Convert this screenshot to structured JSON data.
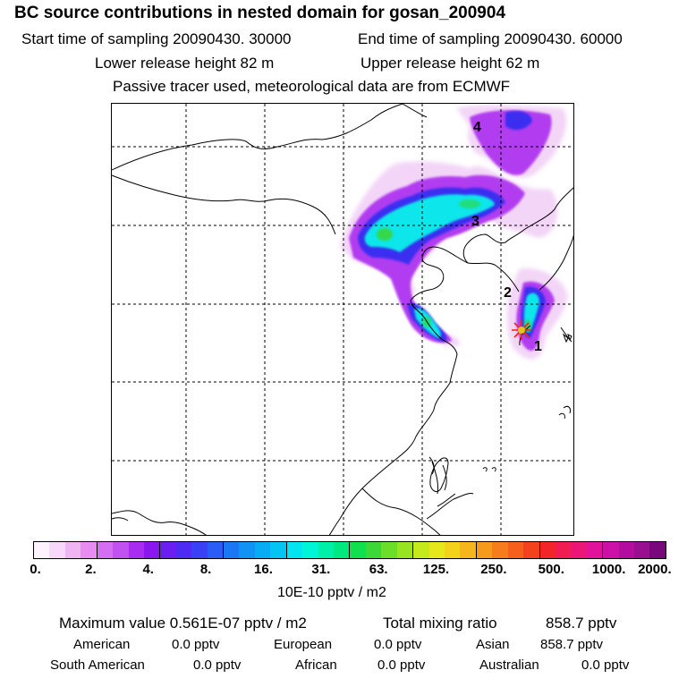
{
  "title": "BC  source contributions in nested domain for gosan_200904",
  "header": {
    "start_time": "Start time of sampling 20090430. 30000",
    "end_time": "End time of sampling 20090430. 60000",
    "lower_release": "Lower release height   82 m",
    "upper_release": "Upper release height   62 m",
    "tracer_note": "Passive tracer used, meteorological data are from ECMWF"
  },
  "map": {
    "site_labels": [
      "1",
      "2",
      "3",
      "4"
    ],
    "receptor_marker_color": "#ff2200"
  },
  "colorbar": {
    "colors": [
      "#fdf2fd",
      "#f8d8fa",
      "#f0b4f5",
      "#e88cf2",
      "#d56ef2",
      "#c251f2",
      "#a92df1",
      "#8b17f0",
      "#6a1ef0",
      "#4e2bf2",
      "#3a40f5",
      "#2b5cf6",
      "#1a78f5",
      "#1193f5",
      "#08acf5",
      "#03c4f2",
      "#00e5ee",
      "#00f5d6",
      "#00f0a8",
      "#00e880",
      "#10e050",
      "#3dd838",
      "#6ade28",
      "#98e420",
      "#c4ea1c",
      "#e6e81c",
      "#f4d21a",
      "#f6b51c",
      "#f69a1c",
      "#f67c1c",
      "#f6601c",
      "#f4421e",
      "#f22628",
      "#f01c52",
      "#ec1678",
      "#e2129a",
      "#cc10a8",
      "#b30c9e",
      "#981090",
      "#78087c"
    ],
    "tick_labels": [
      "0.",
      "2.",
      "4.",
      "8.",
      "16.",
      "31.",
      "63.",
      "125.",
      "250.",
      "500.",
      "1000.",
      "2000."
    ],
    "units": "10E-10 pptv / m2"
  },
  "stats": {
    "maximum": "Maximum value  0.561E-07 pptv / m2",
    "total_label": "Total mixing ratio",
    "total_value": "858.7 pptv"
  },
  "regions": [
    {
      "name": "American",
      "value": "0.0 pptv"
    },
    {
      "name": "European",
      "value": "0.0 pptv"
    },
    {
      "name": "Asian",
      "value": "858.7 pptv"
    },
    {
      "name": "South American",
      "value": "0.0 pptv"
    },
    {
      "name": "African",
      "value": "0.0 pptv"
    },
    {
      "name": "Australian",
      "value": "0.0 pptv"
    }
  ]
}
